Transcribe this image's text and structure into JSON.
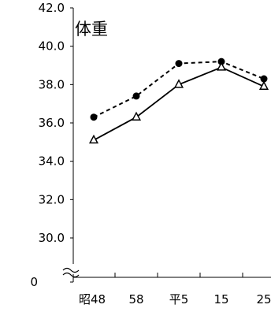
{
  "chart_data": {
    "type": "line",
    "title": "体重",
    "categories": [
      "昭48",
      "58",
      "平5",
      "15",
      "25"
    ],
    "series": [
      {
        "marker": "filled-circle",
        "line_style": "dashed",
        "values": [
          36.3,
          37.4,
          39.1,
          39.2,
          38.3
        ]
      },
      {
        "marker": "open-triangle",
        "line_style": "solid",
        "values": [
          35.1,
          36.3,
          38.0,
          38.9,
          37.9
        ]
      }
    ],
    "y_ticks": [
      "0",
      "30.0",
      "32.0",
      "34.0",
      "36.0",
      "38.0",
      "40.0",
      "42.0"
    ],
    "ylim": [
      30,
      42
    ],
    "axis_break": true,
    "grid": false
  }
}
